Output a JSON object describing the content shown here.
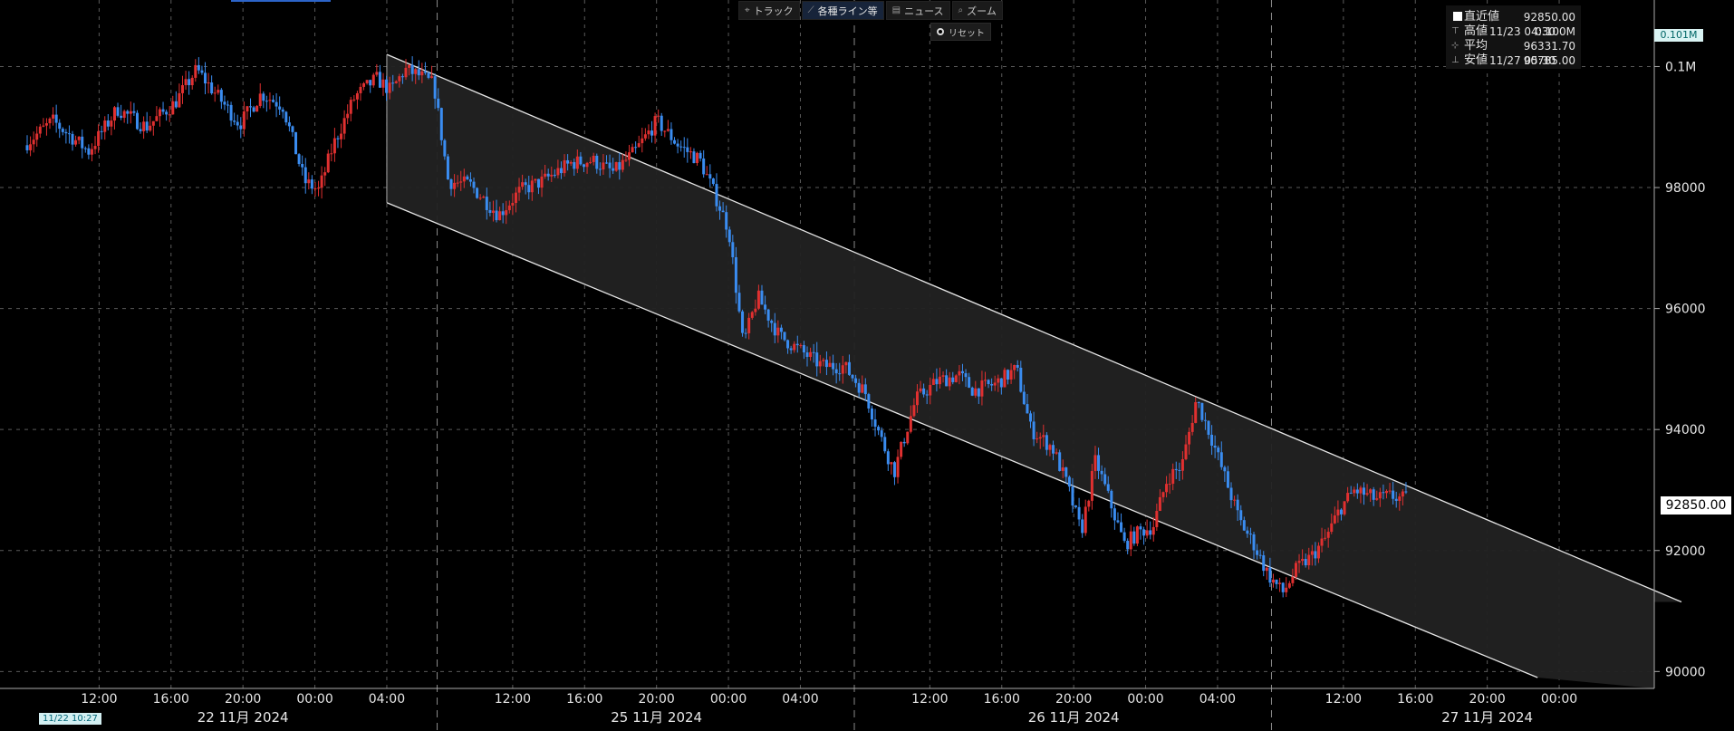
{
  "toolbar": {
    "items": [
      {
        "icon": "crosshair-icon",
        "glyph": "⌖",
        "label": "トラック"
      },
      {
        "icon": "line-icon",
        "glyph": "⟋",
        "label": "各種ライン等",
        "active": true
      },
      {
        "icon": "news-icon",
        "glyph": "▤",
        "label": "ニュース"
      },
      {
        "icon": "zoom-icon",
        "glyph": "⌕",
        "label": "ズーム"
      }
    ],
    "reset_label": "リセット"
  },
  "legend": {
    "rows": [
      {
        "icon": "square-icon",
        "label": "直近値",
        "time": "",
        "value": "92850.00"
      },
      {
        "icon": "high-icon",
        "glyph": "⊤",
        "label": "高値",
        "time": "11/23 04:30",
        "value": "0.100M"
      },
      {
        "icon": "average-icon",
        "glyph": "⊹",
        "label": "平均",
        "time": "",
        "value": "96331.70"
      },
      {
        "icon": "low-icon",
        "glyph": "⊥",
        "label": "安値",
        "time": "11/27 05:30",
        "value": "90785.00"
      }
    ]
  },
  "price_tag": "92850.00",
  "volume_tag": "0.101M",
  "date_badge": "11/22 10:27",
  "chart_data": {
    "type": "candlestick",
    "title": "",
    "colors": {
      "up": "#e03030",
      "down": "#3a8cf0",
      "channel_fill": "#222222",
      "channel_line": "#e6e6e6",
      "grid": "#5a5a5a"
    },
    "y_range": [
      89900,
      101100
    ],
    "y_ticks": [
      {
        "value": 100000,
        "label": "0.1M"
      },
      {
        "value": 98000,
        "label": "98000"
      },
      {
        "value": 96000,
        "label": "96000"
      },
      {
        "value": 94000,
        "label": "94000"
      },
      {
        "value": 92000,
        "label": "92000"
      },
      {
        "value": 90000,
        "label": "90000"
      }
    ],
    "x_range": [
      0,
      23
    ],
    "x_ticks": [
      {
        "pos": 1.0,
        "label": "12:00"
      },
      {
        "pos": 2.0,
        "label": "16:00"
      },
      {
        "pos": 3.0,
        "label": "20:00"
      },
      {
        "pos": 4.0,
        "label": "00:00"
      },
      {
        "pos": 5.0,
        "label": "04:00"
      },
      {
        "pos": 6.75,
        "label": "12:00"
      },
      {
        "pos": 7.75,
        "label": "16:00"
      },
      {
        "pos": 8.75,
        "label": "20:00"
      },
      {
        "pos": 9.75,
        "label": "00:00"
      },
      {
        "pos": 10.75,
        "label": "04:00"
      },
      {
        "pos": 12.55,
        "label": "12:00"
      },
      {
        "pos": 13.55,
        "label": "16:00"
      },
      {
        "pos": 14.55,
        "label": "20:00"
      },
      {
        "pos": 15.55,
        "label": "00:00"
      },
      {
        "pos": 16.55,
        "label": "04:00"
      },
      {
        "pos": 18.3,
        "label": "12:00"
      },
      {
        "pos": 19.3,
        "label": "16:00"
      },
      {
        "pos": 20.3,
        "label": "20:00"
      },
      {
        "pos": 21.3,
        "label": "00:00"
      }
    ],
    "day_separators": [
      5.7,
      11.5,
      17.3
    ],
    "day_labels": [
      {
        "pos": 3.0,
        "label": "22 11月 2024"
      },
      {
        "pos": 8.75,
        "label": "25 11月 2024"
      },
      {
        "pos": 14.55,
        "label": "26 11月 2024"
      },
      {
        "pos": 20.3,
        "label": "27 11月 2024"
      }
    ],
    "price_line": [
      [
        0.0,
        98700
      ],
      [
        0.4,
        99100
      ],
      [
        0.9,
        98600
      ],
      [
        1.3,
        99300
      ],
      [
        1.7,
        99000
      ],
      [
        2.1,
        99400
      ],
      [
        2.4,
        99950
      ],
      [
        2.7,
        99500
      ],
      [
        3.0,
        99050
      ],
      [
        3.3,
        99550
      ],
      [
        3.6,
        99350
      ],
      [
        3.9,
        98100
      ],
      [
        4.1,
        97950
      ],
      [
        4.3,
        98700
      ],
      [
        4.6,
        99500
      ],
      [
        4.9,
        99800
      ],
      [
        5.1,
        99600
      ],
      [
        5.3,
        99950
      ],
      [
        5.5,
        99850
      ],
      [
        5.7,
        99700
      ],
      [
        5.9,
        98100
      ],
      [
        6.2,
        98050
      ],
      [
        6.6,
        97550
      ],
      [
        6.9,
        97950
      ],
      [
        7.2,
        98100
      ],
      [
        7.6,
        98400
      ],
      [
        7.9,
        98450
      ],
      [
        8.2,
        98250
      ],
      [
        8.5,
        98600
      ],
      [
        8.8,
        99100
      ],
      [
        9.1,
        98700
      ],
      [
        9.4,
        98450
      ],
      [
        9.6,
        97900
      ],
      [
        9.8,
        97300
      ],
      [
        10.0,
        95400
      ],
      [
        10.2,
        96200
      ],
      [
        10.5,
        95550
      ],
      [
        10.8,
        95300
      ],
      [
        11.1,
        95050
      ],
      [
        11.4,
        95050
      ],
      [
        11.7,
        94600
      ],
      [
        11.9,
        93900
      ],
      [
        12.1,
        93300
      ],
      [
        12.4,
        94500
      ],
      [
        12.7,
        94800
      ],
      [
        13.0,
        94900
      ],
      [
        13.2,
        94650
      ],
      [
        13.5,
        94750
      ],
      [
        13.8,
        95000
      ],
      [
        14.0,
        94000
      ],
      [
        14.3,
        93700
      ],
      [
        14.5,
        93100
      ],
      [
        14.7,
        92300
      ],
      [
        14.9,
        93500
      ],
      [
        15.1,
        92800
      ],
      [
        15.3,
        92100
      ],
      [
        15.5,
        92300
      ],
      [
        15.7,
        92400
      ],
      [
        15.9,
        93200
      ],
      [
        16.1,
        93400
      ],
      [
        16.3,
        94500
      ],
      [
        16.5,
        93900
      ],
      [
        16.7,
        93200
      ],
      [
        16.9,
        92500
      ],
      [
        17.1,
        92100
      ],
      [
        17.3,
        91600
      ],
      [
        17.5,
        91300
      ],
      [
        17.7,
        91700
      ],
      [
        17.9,
        91900
      ],
      [
        18.1,
        92200
      ],
      [
        18.3,
        92700
      ],
      [
        18.5,
        93000
      ],
      [
        18.8,
        92850
      ],
      [
        19.0,
        92900
      ],
      [
        19.2,
        92850
      ]
    ],
    "channel": {
      "upper": [
        [
          5.0,
          100200
        ],
        [
          23.0,
          91150
        ]
      ],
      "lower": [
        [
          5.0,
          97750
        ],
        [
          21.0,
          89900
        ]
      ]
    }
  }
}
